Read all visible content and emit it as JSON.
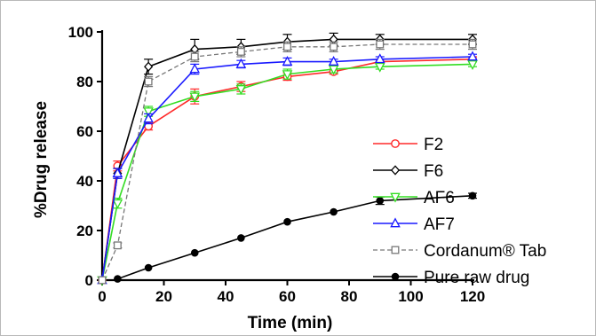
{
  "chart_data": {
    "type": "line",
    "title": "",
    "xlabel": "Time (min)",
    "ylabel": "%Drug release",
    "xlim": [
      0,
      120
    ],
    "ylim": [
      0,
      100
    ],
    "xticks": [
      0,
      20,
      40,
      60,
      80,
      100,
      120
    ],
    "yticks": [
      0,
      20,
      40,
      60,
      80,
      100
    ],
    "grid": false,
    "legend_position": "right",
    "series": [
      {
        "name": "F2",
        "color": "#ff2a2a",
        "marker": "circle-open",
        "dash": "solid",
        "x": [
          0,
          5,
          15,
          30,
          45,
          60,
          75,
          90,
          120
        ],
        "y": [
          0,
          46,
          62,
          74,
          78,
          82,
          84,
          88,
          89
        ],
        "err": [
          0,
          2,
          1.5,
          3,
          2,
          1.5,
          1,
          1,
          1
        ]
      },
      {
        "name": "F6",
        "color": "#000000",
        "marker": "diamond-open",
        "dash": "solid",
        "x": [
          0,
          5,
          15,
          30,
          45,
          60,
          75,
          90,
          120
        ],
        "y": [
          0,
          43,
          86,
          93,
          94,
          96,
          97,
          97,
          97
        ],
        "err": [
          0,
          2,
          3,
          4,
          3,
          3,
          2.5,
          2,
          2
        ]
      },
      {
        "name": "AF6",
        "color": "#33dd22",
        "marker": "triangle-down-open",
        "dash": "solid",
        "x": [
          0,
          5,
          15,
          30,
          45,
          60,
          75,
          90,
          120
        ],
        "y": [
          0,
          31,
          68,
          74,
          77,
          83,
          85,
          86,
          87
        ],
        "err": [
          0,
          2,
          2,
          2,
          2,
          2,
          1.5,
          1,
          1
        ]
      },
      {
        "name": "AF7",
        "color": "#1a1aff",
        "marker": "triangle-up-open",
        "dash": "solid",
        "x": [
          0,
          5,
          15,
          30,
          45,
          60,
          75,
          90,
          120
        ],
        "y": [
          0,
          43,
          65,
          85,
          87,
          88,
          88,
          89,
          90
        ],
        "err": [
          0,
          2,
          2,
          2,
          1.5,
          1.5,
          1,
          1,
          1
        ]
      },
      {
        "name": "Cordanum® Tab",
        "color": "#777777",
        "marker": "square-open",
        "dash": "dashed",
        "x": [
          0,
          5,
          15,
          30,
          45,
          60,
          75,
          90,
          120
        ],
        "y": [
          0,
          14,
          80,
          90,
          92,
          94,
          94,
          95,
          95
        ],
        "err": [
          0,
          1,
          2,
          2,
          2,
          2,
          2,
          2,
          2
        ]
      },
      {
        "name": "Pure raw drug",
        "color": "#000000",
        "marker": "circle-filled",
        "dash": "solid",
        "x": [
          5,
          15,
          30,
          45,
          60,
          75,
          90,
          120
        ],
        "y": [
          0.5,
          5,
          11,
          17,
          23.5,
          27.5,
          32,
          34
        ],
        "err": [
          0,
          0,
          0,
          0,
          0,
          0,
          1.5,
          1
        ]
      }
    ]
  }
}
